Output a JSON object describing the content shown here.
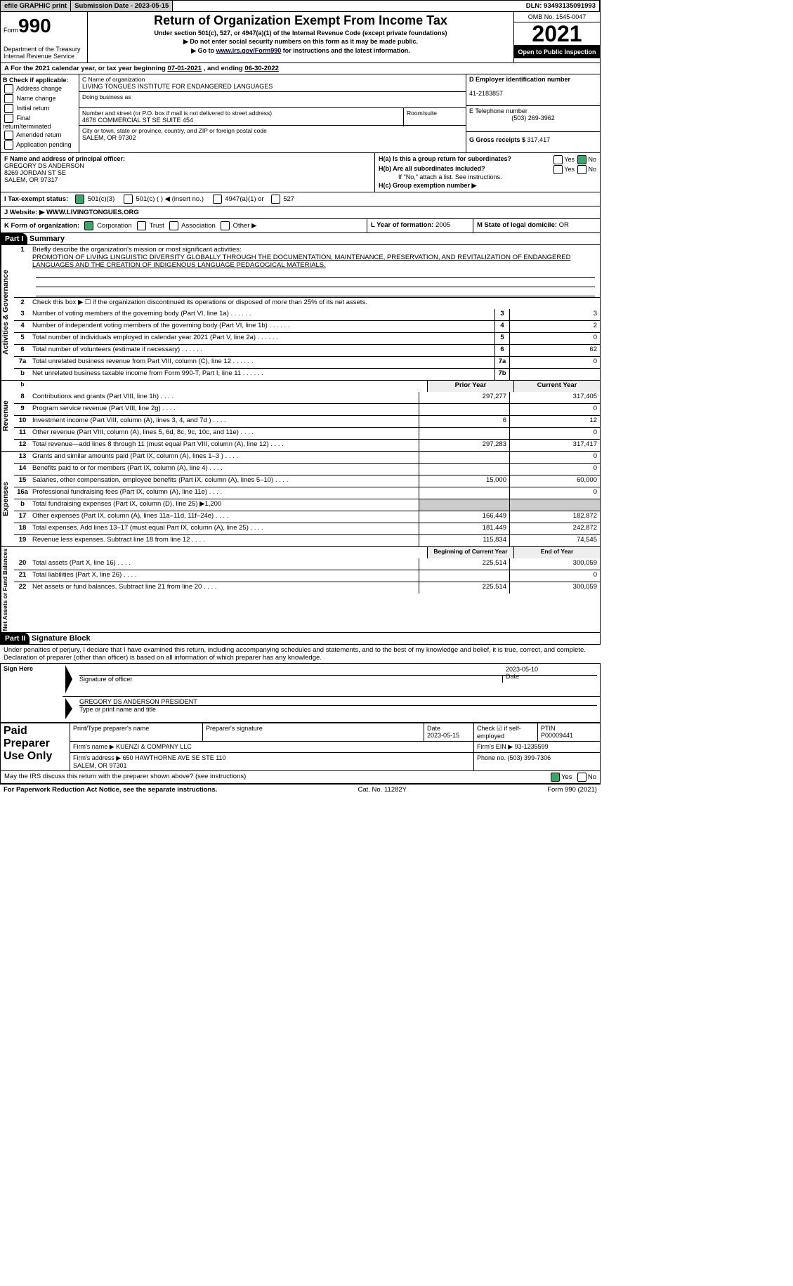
{
  "topbar": {
    "efile": "efile GRAPHIC print",
    "sub_lbl": "Submission Date - ",
    "sub_date": "2023-05-15",
    "dln_lbl": "DLN: ",
    "dln": "93493135091993"
  },
  "header": {
    "form": "Form",
    "formnum": "990",
    "dept": "Department of the Treasury\nInternal Revenue Service",
    "title": "Return of Organization Exempt From Income Tax",
    "sub1": "Under section 501(c), 527, or 4947(a)(1) of the Internal Revenue Code (except private foundations)",
    "sub2": "▶ Do not enter social security numbers on this form as it may be made public.",
    "sub3_pre": "▶ Go to ",
    "sub3_link": "www.irs.gov/Form990",
    "sub3_post": " for instructions and the latest information.",
    "omb": "OMB No. 1545-0047",
    "year": "2021",
    "otp": "Open to Public Inspection"
  },
  "rowA": {
    "pre": "A For the 2021 calendar year, or tax year beginning ",
    "begin": "07-01-2021",
    "mid": " , and ending ",
    "end": "06-30-2022"
  },
  "colB": {
    "hdr": "B Check if applicable:",
    "items": [
      "Address change",
      "Name change",
      "Initial return",
      "Final return/terminated",
      "Amended return",
      "Application pending"
    ]
  },
  "colC": {
    "name_lbl": "C Name of organization",
    "name": "LIVING TONGUES INSTITUTE FOR ENDANGERED LANGUAGES",
    "dba_lbl": "Doing business as",
    "dba": "",
    "addr_lbl": "Number and street (or P.O. box if mail is not delivered to street address)",
    "room_lbl": "Room/suite",
    "addr": "4676 COMMERCIAL ST SE SUITE 454",
    "city_lbl": "City or town, state or province, country, and ZIP or foreign postal code",
    "city": "SALEM, OR  97302"
  },
  "colD": {
    "ein_lbl": "D Employer identification number",
    "ein": "41-2183857",
    "phone_lbl": "E Telephone number",
    "phone": "(503) 269-3962",
    "gross_lbl": "G Gross receipts $ ",
    "gross": "317,417"
  },
  "rowF": {
    "lbl": "F Name and address of principal officer:",
    "name": "GREGORY DS ANDERSON",
    "addr": "8269 JORDAN ST SE\nSALEM, OR  97317"
  },
  "rowH": {
    "ha": "H(a)  Is this a group return for subordinates?",
    "hb": "H(b)  Are all subordinates included?",
    "hb2": "If \"No,\" attach a list. See instructions.",
    "hc": "H(c)  Group exemption number ▶",
    "yes": "Yes",
    "no": "No"
  },
  "rowI": {
    "lbl": "I  Tax-exempt status:",
    "a": "501(c)(3)",
    "b": "501(c) (   ) ◀ (insert no.)",
    "c": "4947(a)(1) or",
    "d": "527"
  },
  "rowJ": {
    "lbl": "J  Website: ▶ ",
    "val": "WWW.LIVINGTONGUES.ORG"
  },
  "rowK": {
    "lbl": "K Form of organization:",
    "a": "Corporation",
    "b": "Trust",
    "c": "Association",
    "d": "Other ▶",
    "L": "L Year of formation: ",
    "Lv": "2005",
    "M": "M State of legal domicile: ",
    "Mv": "OR"
  },
  "part1": {
    "title": "Part I",
    "subtitle": "Summary",
    "sections": {
      "act": {
        "label": "Activities & Governance",
        "l1_lbl": "Briefly describe the organization's mission or most significant activities:",
        "l1_text": "PROMOTION OF LIVING LINGUISTIC DIVERSITY GLOBALLY THROUGH THE DOCUMENTATION, MAINTENANCE, PRESERVATION, AND REVITALIZATION OF ENDANGERED LANGUAGES AND THE CREATION OF INDIGENOUS LANGUAGE PEDAGOGICAL MATERIALS.",
        "l2": "Check this box ▶ ☐ if the organization discontinued its operations or disposed of more than 25% of its net assets.",
        "rows": [
          {
            "n": "3",
            "t": "Number of voting members of the governing body (Part VI, line 1a)",
            "b": "3",
            "v": "3"
          },
          {
            "n": "4",
            "t": "Number of independent voting members of the governing body (Part VI, line 1b)",
            "b": "4",
            "v": "2"
          },
          {
            "n": "5",
            "t": "Total number of individuals employed in calendar year 2021 (Part V, line 2a)",
            "b": "5",
            "v": "0"
          },
          {
            "n": "6",
            "t": "Total number of volunteers (estimate if necessary)",
            "b": "6",
            "v": "62"
          },
          {
            "n": "7a",
            "t": "Total unrelated business revenue from Part VIII, column (C), line 12",
            "b": "7a",
            "v": "0"
          },
          {
            "n": "b",
            "t": "Net unrelated business taxable income from Form 990-T, Part I, line 11",
            "b": "7b",
            "v": ""
          }
        ]
      },
      "rev": {
        "label": "Revenue",
        "hdr_prior": "Prior Year",
        "hdr_curr": "Current Year",
        "rows": [
          {
            "n": "8",
            "t": "Contributions and grants (Part VIII, line 1h)",
            "p": "297,277",
            "c": "317,405"
          },
          {
            "n": "9",
            "t": "Program service revenue (Part VIII, line 2g)",
            "p": "",
            "c": "0"
          },
          {
            "n": "10",
            "t": "Investment income (Part VIII, column (A), lines 3, 4, and 7d )",
            "p": "6",
            "c": "12"
          },
          {
            "n": "11",
            "t": "Other revenue (Part VIII, column (A), lines 5, 6d, 8c, 9c, 10c, and 11e)",
            "p": "",
            "c": "0"
          },
          {
            "n": "12",
            "t": "Total revenue—add lines 8 through 11 (must equal Part VIII, column (A), line 12)",
            "p": "297,283",
            "c": "317,417"
          }
        ]
      },
      "exp": {
        "label": "Expenses",
        "rows": [
          {
            "n": "13",
            "t": "Grants and similar amounts paid (Part IX, column (A), lines 1–3 )",
            "p": "",
            "c": "0"
          },
          {
            "n": "14",
            "t": "Benefits paid to or for members (Part IX, column (A), line 4)",
            "p": "",
            "c": "0"
          },
          {
            "n": "15",
            "t": "Salaries, other compensation, employee benefits (Part IX, column (A), lines 5–10)",
            "p": "15,000",
            "c": "60,000"
          },
          {
            "n": "16a",
            "t": "Professional fundraising fees (Part IX, column (A), line 11e)",
            "p": "",
            "c": "0"
          },
          {
            "n": "b",
            "t": "Total fundraising expenses (Part IX, column (D), line 25) ▶1,200",
            "gray": true
          },
          {
            "n": "17",
            "t": "Other expenses (Part IX, column (A), lines 11a–11d, 11f–24e)",
            "p": "166,449",
            "c": "182,872"
          },
          {
            "n": "18",
            "t": "Total expenses. Add lines 13–17 (must equal Part IX, column (A), line 25)",
            "p": "181,449",
            "c": "242,872"
          },
          {
            "n": "19",
            "t": "Revenue less expenses. Subtract line 18 from line 12",
            "p": "115,834",
            "c": "74,545"
          }
        ]
      },
      "net": {
        "label": "Net Assets or Fund Balances",
        "hdr_prior": "Beginning of Current Year",
        "hdr_curr": "End of Year",
        "rows": [
          {
            "n": "20",
            "t": "Total assets (Part X, line 16)",
            "p": "225,514",
            "c": "300,059"
          },
          {
            "n": "21",
            "t": "Total liabilities (Part X, line 26)",
            "p": "",
            "c": "0"
          },
          {
            "n": "22",
            "t": "Net assets or fund balances. Subtract line 21 from line 20",
            "p": "225,514",
            "c": "300,059"
          }
        ]
      }
    }
  },
  "part2": {
    "title": "Part II",
    "subtitle": "Signature Block",
    "decl": "Under penalties of perjury, I declare that I have examined this return, including accompanying schedules and statements, and to the best of my knowledge and belief, it is true, correct, and complete. Declaration of preparer (other than officer) is based on all information of which preparer has any knowledge.",
    "sign_here": "Sign Here",
    "sig_of_officer": "Signature of officer",
    "sig_date": "2023-05-10",
    "date_lbl": "Date",
    "officer_name": "GREGORY DS ANDERSON  PRESIDENT",
    "officer_lbl": "Type or print name and title",
    "paid": "Paid Preparer Use Only",
    "prep_name_lbl": "Print/Type preparer's name",
    "prep_sig_lbl": "Preparer's signature",
    "prep_date_lbl": "Date",
    "prep_date": "2023-05-15",
    "self_lbl": "Check ☑ if self-employed",
    "ptin_lbl": "PTIN",
    "ptin": "P00009441",
    "firm_name_lbl": "Firm's name  ▶ ",
    "firm_name": "KUENZI & COMPANY LLC",
    "firm_ein_lbl": "Firm's EIN ▶ ",
    "firm_ein": "93-1235599",
    "firm_addr_lbl": "Firm's address ▶ ",
    "firm_addr": "650 HAWTHORNE AVE SE STE 110\nSALEM, OR  97301",
    "firm_phone_lbl": "Phone no. ",
    "firm_phone": "(503) 399-7306",
    "discuss": "May the IRS discuss this return with the preparer shown above? (see instructions)",
    "yes": "Yes",
    "no": "No"
  },
  "footer": {
    "pra": "For Paperwork Reduction Act Notice, see the separate instructions.",
    "cat": "Cat. No. 11282Y",
    "form": "Form 990 (2021)"
  }
}
